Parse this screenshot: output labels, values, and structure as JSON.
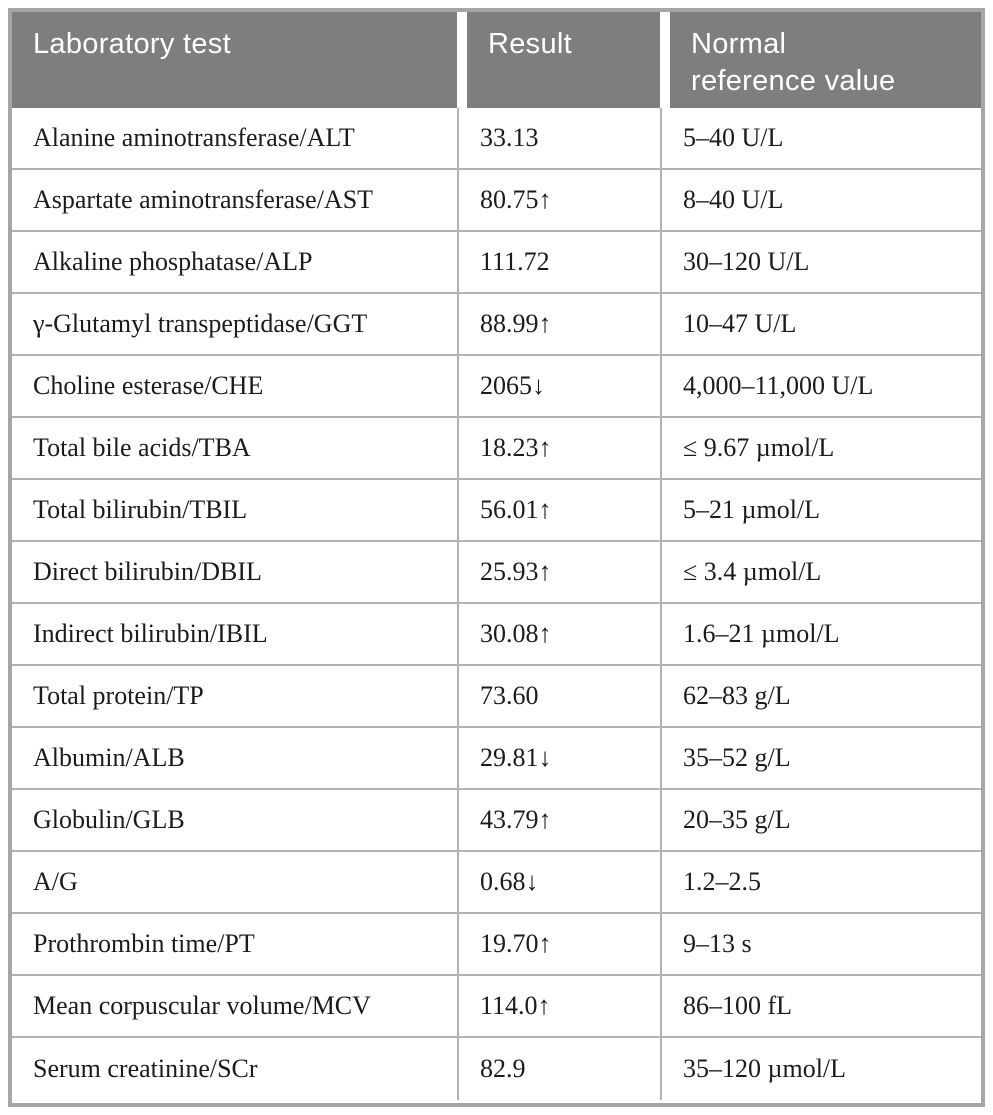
{
  "table": {
    "columns": [
      {
        "label": "Laboratory test"
      },
      {
        "label": "Result"
      },
      {
        "label": "Normal reference value"
      }
    ],
    "rows": [
      {
        "test": "Alanine aminotransferase/ALT",
        "result": "33.13",
        "flag": "none",
        "reference": "5–40 U/L"
      },
      {
        "test": "Aspartate aminotransferase/AST",
        "result": "80.75↑",
        "flag": "up",
        "reference": "8–40 U/L"
      },
      {
        "test": "Alkaline phosphatase/ALP",
        "result": "111.72",
        "flag": "none",
        "reference": "30–120 U/L"
      },
      {
        "test": "γ-Glutamyl transpeptidase/GGT",
        "result": "88.99↑",
        "flag": "up",
        "reference": "10–47 U/L"
      },
      {
        "test": "Choline esterase/CHE",
        "result": "2065↓",
        "flag": "down",
        "reference": "4,000–11,000 U/L"
      },
      {
        "test": "Total bile acids/TBA",
        "result": "18.23↑",
        "flag": "up",
        "reference": "≤ 9.67 µmol/L"
      },
      {
        "test": "Total bilirubin/TBIL",
        "result": "56.01↑",
        "flag": "up",
        "reference": "5–21 µmol/L"
      },
      {
        "test": "Direct bilirubin/DBIL",
        "result": "25.93↑",
        "flag": "up",
        "reference": "≤ 3.4 µmol/L"
      },
      {
        "test": "Indirect bilirubin/IBIL",
        "result": "30.08↑",
        "flag": "up",
        "reference": "1.6–21 µmol/L"
      },
      {
        "test": "Total protein/TP",
        "result": "73.60",
        "flag": "none",
        "reference": "62–83 g/L"
      },
      {
        "test": "Albumin/ALB",
        "result": "29.81↓",
        "flag": "down",
        "reference": "35–52 g/L"
      },
      {
        "test": "Globulin/GLB",
        "result": "43.79↑",
        "flag": "up",
        "reference": "20–35 g/L"
      },
      {
        "test": "A/G",
        "result": "0.68↓",
        "flag": "down",
        "reference": "1.2–2.5"
      },
      {
        "test": "Prothrombin time/PT",
        "result": "19.70↑",
        "flag": "up",
        "reference": "9–13 s"
      },
      {
        "test": "Mean corpuscular volume/MCV",
        "result": "114.0↑",
        "flag": "up",
        "reference": "86–100 fL"
      },
      {
        "test": "Serum creatinine/SCr",
        "result": "82.9",
        "flag": "none",
        "reference": "35–120 µmol/L"
      }
    ]
  },
  "chart_data": {
    "type": "table",
    "columns": [
      "Laboratory test",
      "Result",
      "Normal reference value"
    ],
    "rows": [
      [
        "Alanine aminotransferase/ALT",
        "33.13",
        "5–40 U/L"
      ],
      [
        "Aspartate aminotransferase/AST",
        "80.75↑",
        "8–40 U/L"
      ],
      [
        "Alkaline phosphatase/ALP",
        "111.72",
        "30–120 U/L"
      ],
      [
        "γ-Glutamyl transpeptidase/GGT",
        "88.99↑",
        "10–47 U/L"
      ],
      [
        "Choline esterase/CHE",
        "2065↓",
        "4,000–11,000 U/L"
      ],
      [
        "Total bile acids/TBA",
        "18.23↑",
        "≤ 9.67 µmol/L"
      ],
      [
        "Total bilirubin/TBIL",
        "56.01↑",
        "5–21 µmol/L"
      ],
      [
        "Direct bilirubin/DBIL",
        "25.93↑",
        "≤ 3.4 µmol/L"
      ],
      [
        "Indirect bilirubin/IBIL",
        "30.08↑",
        "1.6–21 µmol/L"
      ],
      [
        "Total protein/TP",
        "73.60",
        "62–83 g/L"
      ],
      [
        "Albumin/ALB",
        "29.81↓",
        "35–52 g/L"
      ],
      [
        "Globulin/GLB",
        "43.79↑",
        "20–35 g/L"
      ],
      [
        "A/G",
        "0.68↓",
        "1.2–2.5"
      ],
      [
        "Prothrombin time/PT",
        "19.70↑",
        "9–13 s"
      ],
      [
        "Mean corpuscular volume/MCV",
        "114.0↑",
        "86–100 fL"
      ],
      [
        "Serum creatinine/SCr",
        "82.9",
        "35–120 µmol/L"
      ]
    ]
  },
  "colors": {
    "header_bg": "#7e7e7e",
    "outer_border": "#a6a6a6",
    "row_separator": "#b1b1b1",
    "header_text": "#ffffff",
    "body_text": "#1b1b1b"
  }
}
